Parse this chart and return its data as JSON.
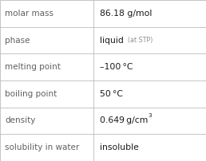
{
  "rows": [
    {
      "label": "molar mass",
      "value": "86.18 g/mol",
      "superscript": null,
      "extra": null
    },
    {
      "label": "phase",
      "value": "liquid",
      "superscript": null,
      "extra": "(at STP)"
    },
    {
      "label": "melting point",
      "value": "–100 °C",
      "superscript": null,
      "extra": null
    },
    {
      "label": "boiling point",
      "value": "50 °C",
      "superscript": null,
      "extra": null
    },
    {
      "label": "density",
      "value": "0.649 g/cm",
      "superscript": "3",
      "extra": null
    },
    {
      "label": "solubility in water",
      "value": "insoluble",
      "superscript": null,
      "extra": null
    }
  ],
  "bg_color": "#ffffff",
  "border_color": "#bbbbbb",
  "label_color": "#606060",
  "value_color": "#1a1a1a",
  "extra_color": "#909090",
  "label_fontsize": 7.5,
  "value_fontsize": 7.8,
  "extra_fontsize": 5.8,
  "super_fontsize": 5.2,
  "col_split": 0.455,
  "fig_width": 2.58,
  "fig_height": 2.02,
  "dpi": 100
}
